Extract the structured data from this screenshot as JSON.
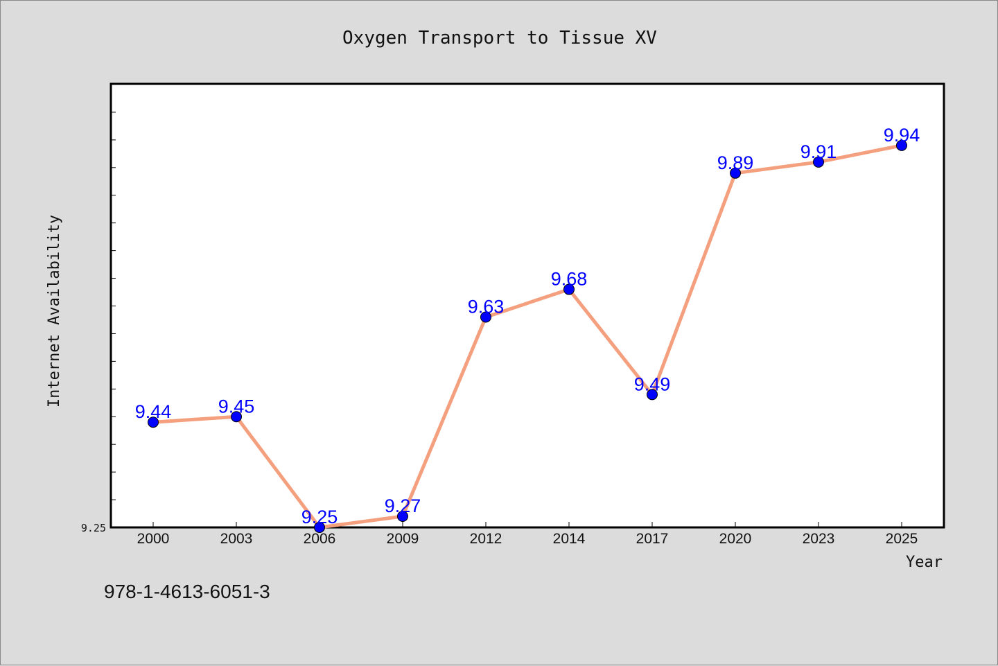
{
  "chart_data": {
    "type": "line",
    "title": "Oxygen Transport to Tissue XV",
    "xlabel": "Year",
    "ylabel": "Internet Availability",
    "categories": [
      "2000",
      "2003",
      "2006",
      "2009",
      "2012",
      "2014",
      "2017",
      "2020",
      "2023",
      "2025"
    ],
    "series": [
      {
        "values": [
          9.44,
          9.45,
          9.25,
          9.27,
          9.63,
          9.68,
          9.49,
          9.89,
          9.91,
          9.94
        ]
      }
    ],
    "data_labels": [
      "9.44",
      "9.45",
      "9.25",
      "9.27",
      "9.63",
      "9.68",
      "9.49",
      "9.89",
      "9.91",
      "9.94"
    ],
    "ylim": [
      9.25,
      10.05
    ],
    "y_tick_labels": [
      {
        "value": 9.25,
        "label": "9.25"
      }
    ],
    "y_minor_tick_step": 0.05,
    "grid": false,
    "legend": "none",
    "line_color": "#f4a07f",
    "marker_color": "#0000ff",
    "label_color": "#0000ff"
  },
  "footer": {
    "isbn": "978-1-4613-6051-3"
  }
}
